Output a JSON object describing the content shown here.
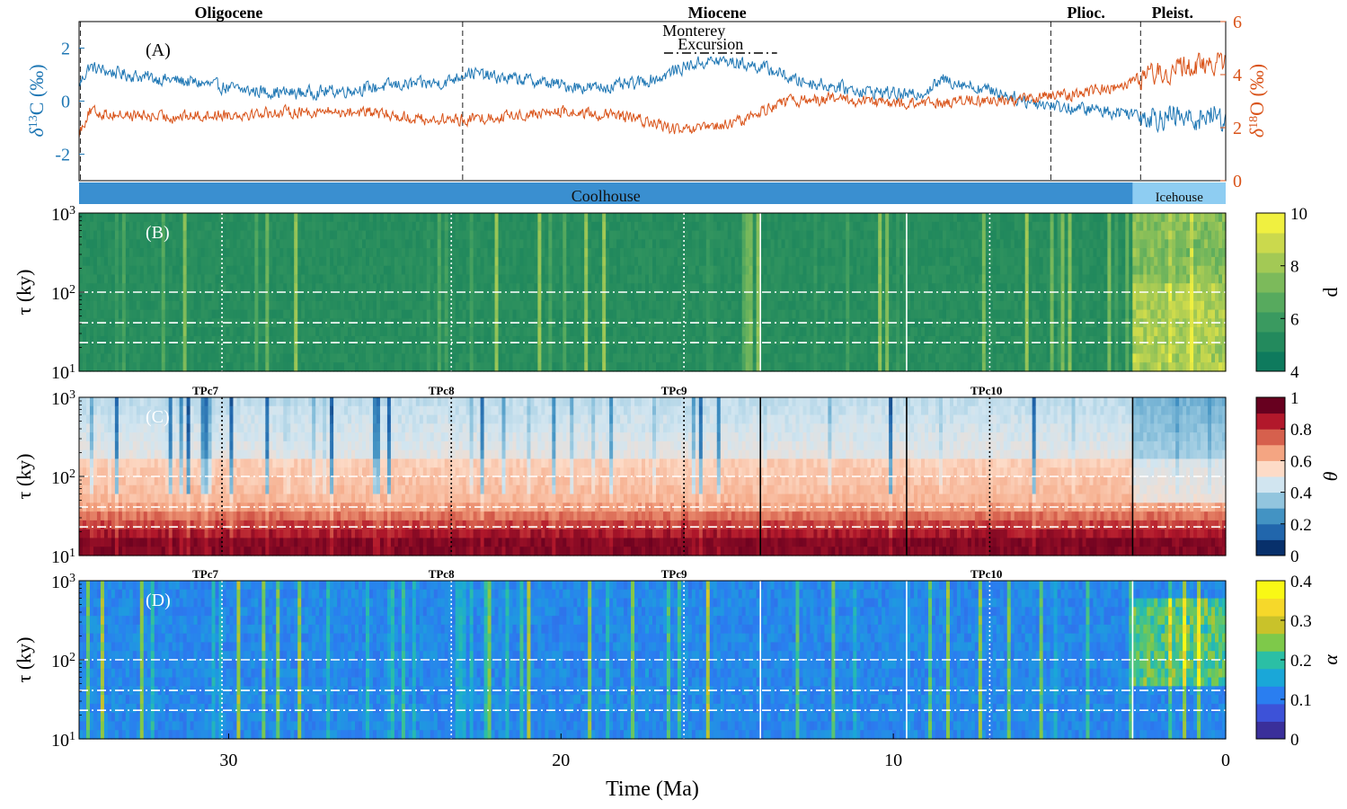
{
  "figure": {
    "xlabel": "Time (Ma)",
    "xticks": [
      30,
      20,
      10,
      0
    ],
    "xlim": [
      34.5,
      0
    ]
  },
  "chart_data": [
    {
      "type": "line",
      "panel": "(A)",
      "epochs": [
        {
          "label": "Oligocene",
          "start": 34.5,
          "end": 23.0,
          "center": 30.0
        },
        {
          "label": "Miocene",
          "start": 23.0,
          "end": 5.3,
          "center": 15.3
        },
        {
          "label": "Plioc.",
          "start": 5.3,
          "end": 2.6,
          "center": 4.2
        },
        {
          "label": "Pleist.",
          "start": 2.6,
          "end": 0.0,
          "center": 1.6
        }
      ],
      "climate_states": [
        {
          "label": "Coolhouse",
          "start": 34.5,
          "end": 2.8,
          "color": "#3a8fd0"
        },
        {
          "label": "Icehouse",
          "start": 2.8,
          "end": 0.0,
          "color": "#8ecdf2"
        }
      ],
      "annotation": {
        "line1": "Monterey",
        "line2": "Excursion",
        "start": 16.9,
        "end": 13.5
      },
      "left_axis": {
        "label_delta": "δ",
        "label_sup": "13",
        "label_rest": "C (‰)",
        "ylim": [
          -3,
          3
        ],
        "ticks": [
          -2,
          0,
          2
        ],
        "color": "#1f77b4"
      },
      "right_axis": {
        "label_delta": "δ",
        "label_sup": "18",
        "label_rest": "O (‰)",
        "ylim": [
          0,
          6
        ],
        "ticks": [
          0,
          2,
          4,
          6
        ],
        "color": "#d95319"
      },
      "series": [
        {
          "name": "δ13C",
          "axis": "left",
          "color": "#1f77b4",
          "noise": 0.22,
          "x": [
            34.5,
            34.2,
            33.6,
            32.5,
            31.0,
            29.5,
            28.0,
            26.5,
            25.0,
            23.5,
            22.8,
            22.0,
            21.0,
            20.0,
            19.0,
            18.0,
            17.0,
            16.5,
            16.0,
            15.5,
            15.0,
            14.5,
            14.0,
            13.5,
            13.0,
            12.0,
            11.0,
            10.0,
            9.5,
            9.0,
            8.5,
            8.0,
            7.5,
            7.0,
            6.5,
            6.0,
            5.5,
            5.0,
            4.5,
            4.0,
            3.5,
            3.0,
            2.5,
            2.0,
            1.5,
            1.0,
            0.5,
            0.0
          ],
          "y": [
            0.6,
            1.3,
            1.1,
            0.9,
            0.7,
            0.4,
            0.3,
            0.4,
            0.6,
            0.7,
            1.1,
            0.9,
            0.8,
            0.6,
            0.5,
            0.6,
            0.9,
            1.2,
            1.4,
            1.5,
            1.5,
            1.4,
            1.3,
            1.1,
            0.8,
            0.6,
            0.4,
            0.3,
            0.2,
            0.4,
            0.8,
            0.7,
            0.5,
            0.4,
            0.2,
            0.0,
            -0.1,
            -0.2,
            -0.3,
            -0.3,
            -0.4,
            -0.4,
            -0.5,
            -0.6,
            -0.6,
            -0.7,
            -0.5,
            -0.7
          ]
        },
        {
          "name": "δ18O",
          "axis": "right",
          "color": "#d95319",
          "noise": 0.2,
          "x": [
            34.5,
            34.2,
            33.5,
            32.0,
            30.0,
            28.0,
            26.0,
            24.0,
            23.0,
            22.0,
            20.0,
            18.0,
            17.0,
            16.5,
            16.0,
            15.0,
            14.5,
            14.0,
            13.5,
            13.0,
            12.0,
            11.0,
            10.0,
            9.0,
            8.0,
            7.0,
            6.0,
            5.0,
            4.5,
            4.0,
            3.5,
            3.0,
            2.5,
            2.0,
            1.5,
            1.0,
            0.5,
            0.0
          ],
          "y": [
            1.8,
            2.6,
            2.5,
            2.4,
            2.5,
            2.6,
            2.6,
            2.3,
            2.3,
            2.4,
            2.6,
            2.4,
            2.1,
            1.9,
            1.9,
            2.1,
            2.3,
            2.6,
            2.9,
            3.0,
            3.1,
            3.0,
            2.9,
            2.9,
            3.0,
            3.0,
            3.1,
            3.2,
            3.3,
            3.4,
            3.5,
            3.7,
            3.9,
            4.1,
            4.2,
            4.3,
            4.4,
            4.5
          ]
        }
      ],
      "vlines": {
        "dashed": [
          34.5,
          23.0,
          5.3,
          2.6
        ]
      }
    },
    {
      "type": "heatmap",
      "panel": "(B)",
      "colorbar": {
        "label": "d",
        "ticks": [
          4,
          6,
          8,
          10
        ],
        "range": [
          4,
          10
        ],
        "colors": [
          "#0e7a5d",
          "#238a5d",
          "#3a9a60",
          "#57aa5e",
          "#7cba5b",
          "#a3c955",
          "#cbd94d",
          "#f0f040"
        ]
      },
      "yaxis": {
        "label": "τ (ky)",
        "scale": "log",
        "range": [
          10,
          1000
        ],
        "tick_base": "10",
        "tick_exps": [
          "1",
          "2",
          "3"
        ]
      },
      "tipping_points": [],
      "vlines": {
        "solid": [
          14.0,
          9.6
        ],
        "dotted": [
          30.2,
          23.3,
          16.3,
          7.1
        ]
      },
      "hlines_dashdot": [
        100,
        41,
        23
      ]
    },
    {
      "type": "heatmap",
      "panel": "(C)",
      "colorbar": {
        "label": "θ",
        "ticks": [
          "0",
          "0.2",
          "0.4",
          "0.6",
          "0.8",
          "1"
        ],
        "range": [
          0,
          1
        ],
        "colors": [
          "#08306b",
          "#2166ac",
          "#4393c3",
          "#92c5de",
          "#d1e5f0",
          "#fddbc7",
          "#f4a582",
          "#d6604d",
          "#b2182b",
          "#67001f"
        ]
      },
      "yaxis": {
        "label": "τ (ky)",
        "scale": "log",
        "range": [
          10,
          1000
        ],
        "tick_base": "10",
        "tick_exps": [
          "1",
          "2",
          "3"
        ]
      },
      "tipping_points": [
        {
          "label": "TPc7",
          "x": 30.7
        },
        {
          "label": "TPc8",
          "x": 23.6
        },
        {
          "label": "TPc9",
          "x": 16.6
        },
        {
          "label": "TPc10",
          "x": 7.2
        }
      ],
      "vlines": {
        "solid": [
          14.0,
          9.6,
          2.8
        ],
        "dotted": [
          30.2,
          23.3,
          16.3,
          7.1
        ]
      },
      "hlines_dashdot": [
        100,
        41,
        23
      ]
    },
    {
      "type": "heatmap",
      "panel": "(D)",
      "colorbar": {
        "label": "α",
        "ticks": [
          "0",
          "0.1",
          "0.2",
          "0.3",
          "0.4"
        ],
        "range": [
          0,
          0.4
        ],
        "colors": [
          "#3a2f9a",
          "#3d52d8",
          "#2a7ef0",
          "#1aa7d8",
          "#2bbfa5",
          "#7ec94a",
          "#c9c22a",
          "#f6d82a",
          "#f9f815"
        ]
      },
      "yaxis": {
        "label": "τ (ky)",
        "scale": "log",
        "range": [
          10,
          1000
        ],
        "tick_base": "10",
        "tick_exps": [
          "1",
          "2",
          "3"
        ]
      },
      "tipping_points": [
        {
          "label": "TPc7",
          "x": 30.7
        },
        {
          "label": "TPc8",
          "x": 23.6
        },
        {
          "label": "TPc9",
          "x": 16.6
        },
        {
          "label": "TPc10",
          "x": 7.2
        }
      ],
      "vlines": {
        "solid": [
          14.0,
          9.6,
          2.8
        ],
        "dotted": [
          30.2,
          23.3,
          16.3,
          7.1
        ]
      },
      "hlines_dashdot": [
        100,
        41,
        23
      ]
    }
  ]
}
